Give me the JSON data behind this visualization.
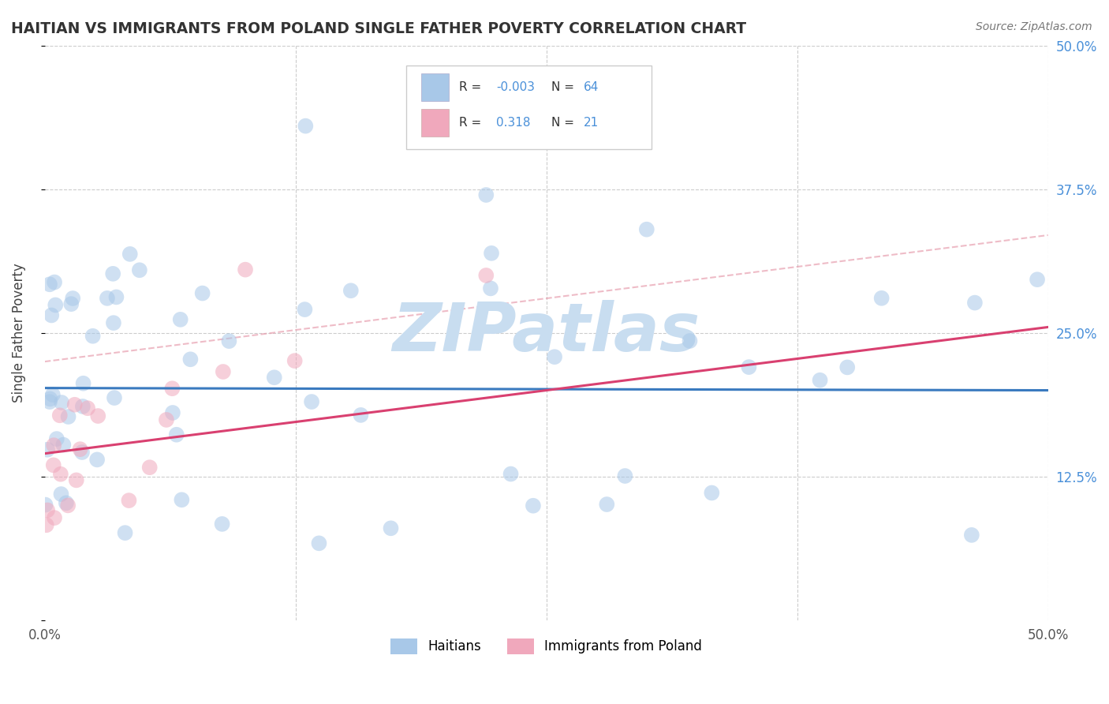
{
  "title": "HAITIAN VS IMMIGRANTS FROM POLAND SINGLE FATHER POVERTY CORRELATION CHART",
  "source": "Source: ZipAtlas.com",
  "ylabel": "Single Father Poverty",
  "xlim": [
    0,
    0.5
  ],
  "ylim": [
    0,
    0.5
  ],
  "haitian_color": "#a8c8e8",
  "poland_color": "#f0a8bc",
  "haitian_line_color": "#3a7abf",
  "poland_line_color": "#d94070",
  "poland_dash_color": "#e8a0b0",
  "grid_color": "#cccccc",
  "background_color": "#ffffff",
  "watermark": "ZIPatlas",
  "watermark_color": "#c8ddf0",
  "title_color": "#333333",
  "haitian_R": -0.003,
  "haitian_N": 64,
  "poland_R": 0.318,
  "poland_N": 21,
  "haitian_line_y0": 0.202,
  "haitian_line_y1": 0.2,
  "poland_line_y0": 0.145,
  "poland_line_y1": 0.255
}
